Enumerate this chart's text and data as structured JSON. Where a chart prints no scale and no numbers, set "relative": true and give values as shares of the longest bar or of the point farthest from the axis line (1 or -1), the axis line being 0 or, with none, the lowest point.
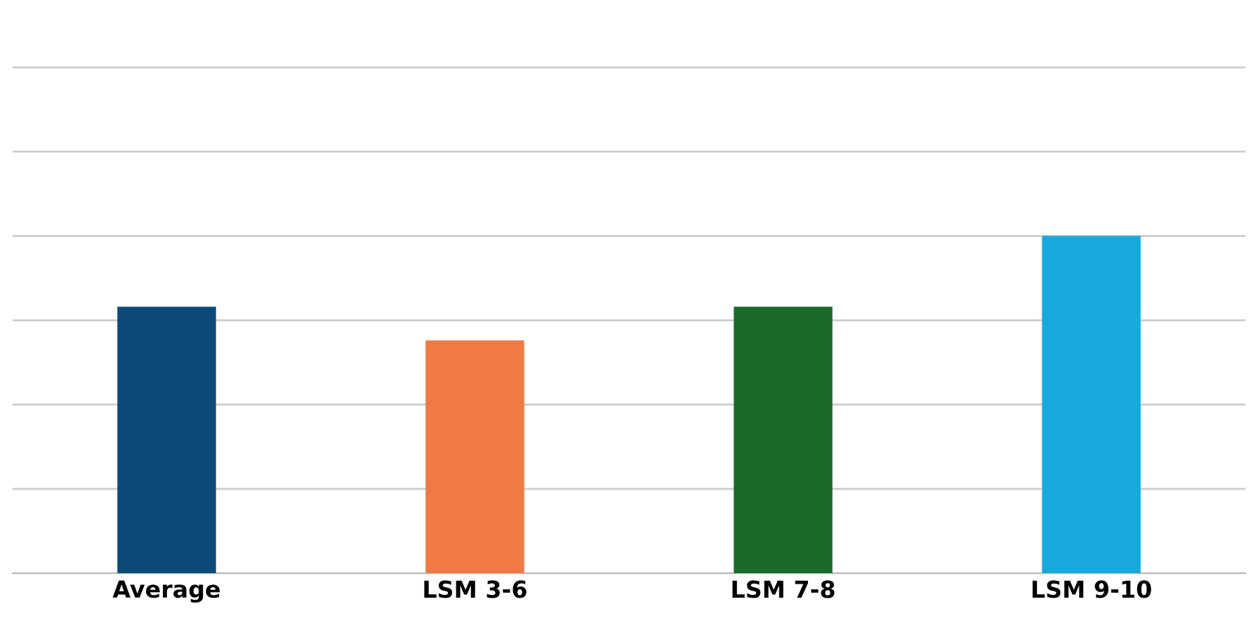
{
  "chart_data": {
    "type": "bar",
    "relative": true,
    "categories": [
      "Average",
      "LSM 3-6",
      "LSM 7-8",
      "LSM 9-10"
    ],
    "values": [
      0.79,
      0.69,
      0.79,
      1.0
    ],
    "colors": [
      "#0c4a7a",
      "#f07a45",
      "#1a6a2a",
      "#18a8de"
    ],
    "grid": "y"
  }
}
